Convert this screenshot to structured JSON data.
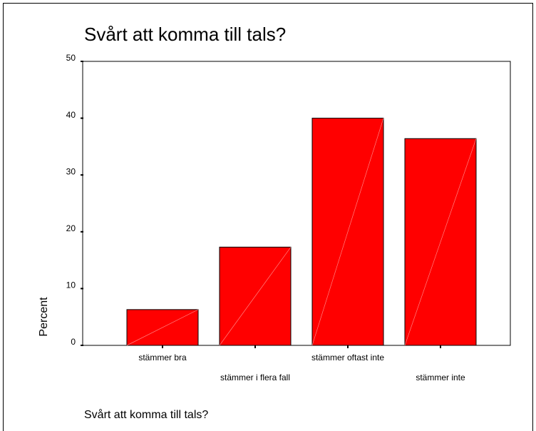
{
  "chart_data": {
    "type": "bar",
    "title": "Svårt att komma till tals?",
    "xlabel": "Svårt att komma till tals?",
    "ylabel": "Percent",
    "categories": [
      "stämmer bra",
      "stämmer i flera fall",
      "stämmer oftast inte",
      "stämmer inte"
    ],
    "values": [
      6.3,
      17.3,
      40.0,
      36.4
    ],
    "color": "#ff0000",
    "ylim": [
      0,
      50
    ],
    "yticks": [
      0,
      10,
      20,
      30,
      40,
      50
    ],
    "grid": false
  }
}
